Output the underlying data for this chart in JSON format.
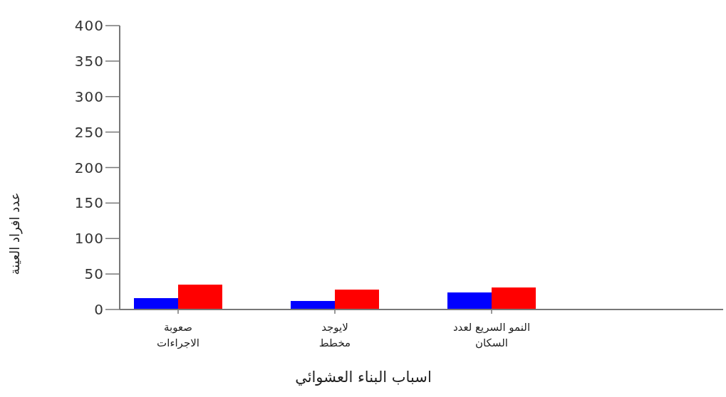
{
  "chart_data": {
    "type": "bar",
    "xlabel": "اسباب البناء العشوائي",
    "ylabel": "عدد افراد العينة",
    "categories": [
      "صعوبة الاجراءات",
      "لايوجد مخطط",
      "النمو السريع لعدد السكان"
    ],
    "series": [
      {
        "color": "#0000ff",
        "values": [
          16,
          12,
          24
        ]
      },
      {
        "color": "#ff0000",
        "values": [
          35,
          28,
          31
        ]
      }
    ],
    "ylim": [
      0,
      400
    ],
    "yticks": [
      0,
      50,
      100,
      150,
      200,
      250,
      300,
      350,
      400
    ],
    "grid": false
  }
}
